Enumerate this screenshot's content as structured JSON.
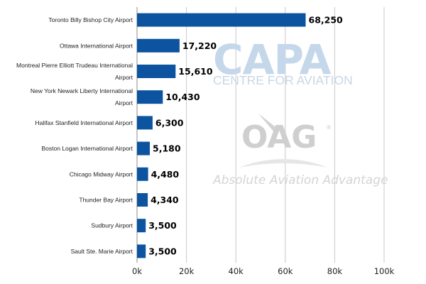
{
  "chart_data": {
    "type": "bar",
    "orientation": "horizontal",
    "categories": [
      [
        "Toronto Billy Bishop City Airport"
      ],
      [
        "Ottawa International Airport"
      ],
      [
        "Montreal Pierre Elliott Trudeau International",
        "Airport"
      ],
      [
        "New York Newark Liberty International",
        "Airport"
      ],
      [
        "Halifax Stanfield International Airport"
      ],
      [
        "Boston Logan International Airport"
      ],
      [
        "Chicago Midway Airport"
      ],
      [
        "Thunder Bay Airport"
      ],
      [
        "Sudbury Airport"
      ],
      [
        "Sault Ste. Marie Airport"
      ]
    ],
    "values": [
      68250,
      17220,
      15610,
      10430,
      6300,
      5180,
      4480,
      4340,
      3500,
      3500
    ],
    "value_labels": [
      "68,250",
      "17,220",
      "15,610",
      "10,430",
      "6,300",
      "5,180",
      "4,480",
      "4,340",
      "3,500",
      "3,500"
    ],
    "xlim": [
      0,
      100000
    ],
    "xticks": [
      0,
      20000,
      40000,
      60000,
      80000,
      100000
    ],
    "xtick_labels": [
      "0k",
      "20k",
      "40k",
      "60k",
      "80k",
      "100k"
    ],
    "grid": true,
    "bar_color": "#0c53a0",
    "grid_color": "#c8c8c8"
  },
  "watermarks": {
    "capa_logo": "CAPA",
    "capa_tagline": "CENTRE FOR AVIATION",
    "oag_logo": "OAG",
    "oag_registered": "®",
    "oag_tagline": "Absolute Aviation Advantage"
  }
}
